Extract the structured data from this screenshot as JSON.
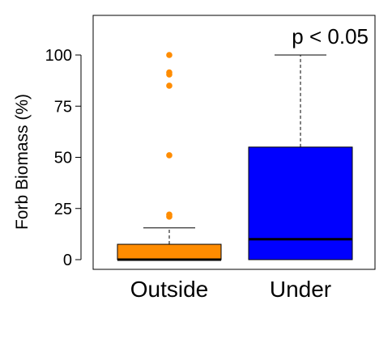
{
  "chart_data": {
    "type": "box",
    "title": "",
    "xlabel": "",
    "ylabel": "Forb Biomass (%)",
    "ylim": [
      -4,
      120
    ],
    "yticks": [
      0,
      25,
      50,
      75,
      100
    ],
    "annotation": "p < 0.05",
    "grid": false,
    "legend": "none",
    "groups": [
      {
        "name": "Outside",
        "color": "#FF8C00",
        "q1": 0,
        "median": 0,
        "q3": 7.5,
        "whisker_low": 0,
        "whisker_high": 15.5,
        "outliers": [
          21,
          22,
          51,
          85,
          90.5,
          91.5,
          100
        ]
      },
      {
        "name": "Under",
        "color": "#0000FF",
        "q1": 0,
        "median": 10,
        "q3": 55,
        "whisker_low": 0,
        "whisker_high": 100,
        "outliers": []
      }
    ]
  }
}
